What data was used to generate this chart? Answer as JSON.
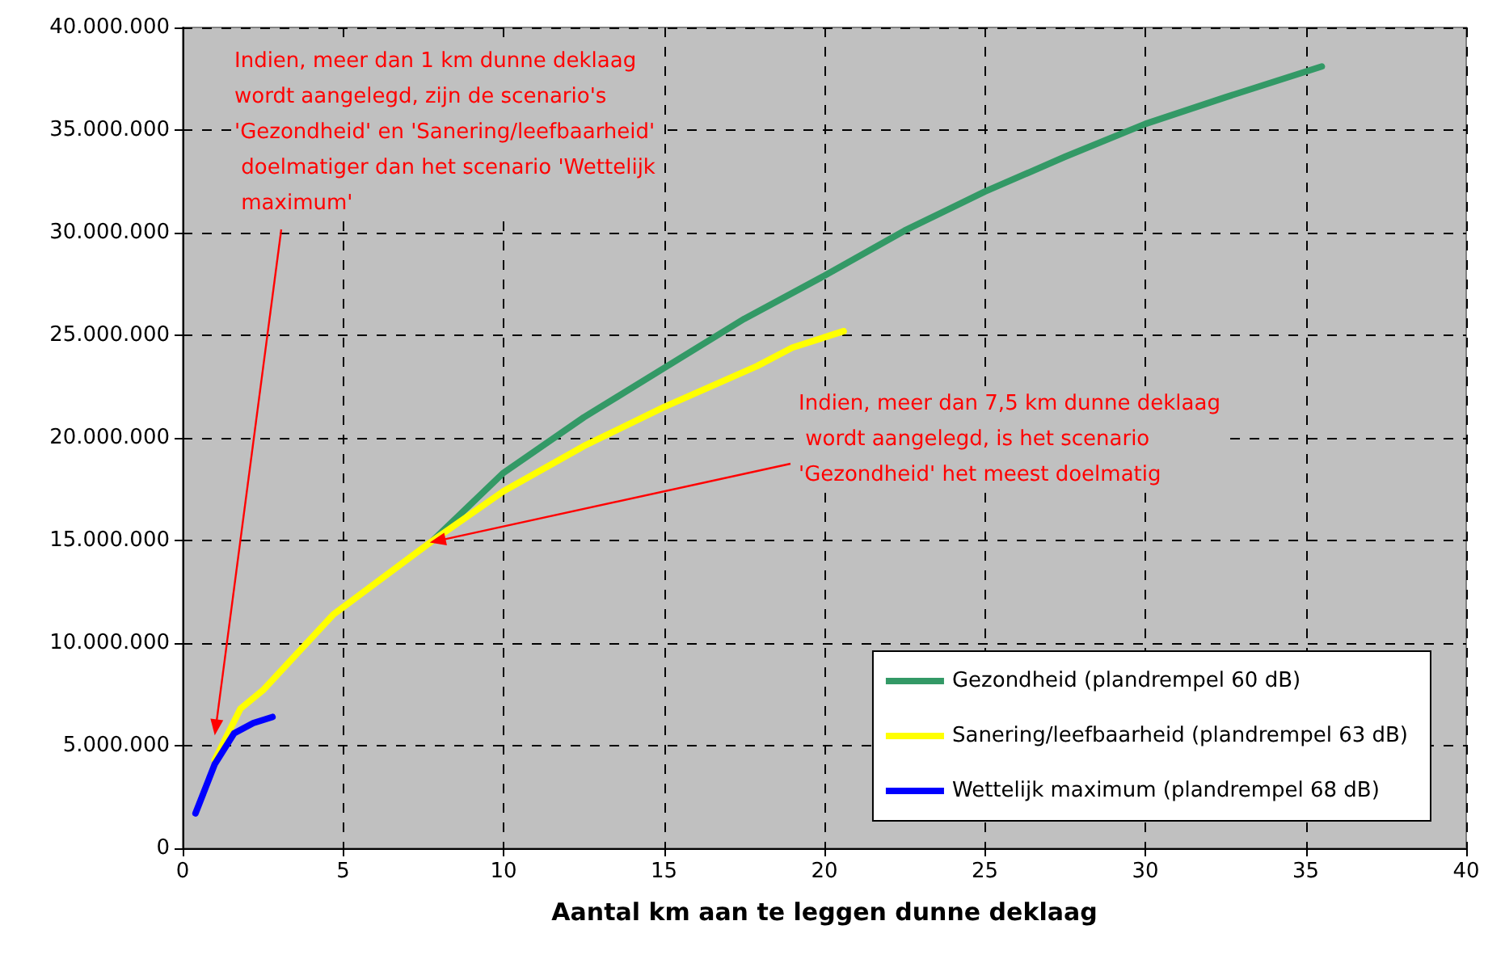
{
  "chart_data": {
    "type": "line",
    "xlabel": "Aantal km aan te leggen dunne deklaag",
    "xlim": [
      0,
      40
    ],
    "xticks": [
      0,
      5,
      10,
      15,
      20,
      25,
      30,
      35,
      40
    ],
    "ylim": [
      0,
      40000000
    ],
    "yticks": [
      {
        "value": 0,
        "label": "0"
      },
      {
        "value": 5000000,
        "label": "5.000.000"
      },
      {
        "value": 10000000,
        "label": "10.000.000"
      },
      {
        "value": 15000000,
        "label": "15.000.000"
      },
      {
        "value": 20000000,
        "label": "20.000.000"
      },
      {
        "value": 25000000,
        "label": "25.000.000"
      },
      {
        "value": 30000000,
        "label": "30.000.000"
      },
      {
        "value": 35000000,
        "label": "35.000.000"
      },
      {
        "value": 40000000,
        "label": "40.000.000"
      }
    ],
    "grid": true,
    "legend": "bottom right",
    "marker": "none",
    "line_style": "solid",
    "series": [
      {
        "name": "Gezondheid (plandrempel 60 dB)",
        "color": "#339966",
        "x": [
          7.8,
          10,
          12.5,
          15,
          17.5,
          20,
          22.5,
          25,
          27.5,
          30,
          32.5,
          35.5
        ],
        "values": [
          15000000,
          18300000,
          21000000,
          23400000,
          25800000,
          27900000,
          30100000,
          32000000,
          33700000,
          35300000,
          36600000,
          38100000
        ]
      },
      {
        "name": "Sanering/leefbaarheid (plandrempel 63 dB)",
        "color": "#ffff00",
        "x": [
          1.0,
          1.8,
          2.5,
          4.7,
          7.8,
          10,
          12.5,
          15,
          17.9,
          19,
          20.6
        ],
        "values": [
          4300000,
          6800000,
          7700000,
          11400000,
          15000000,
          17400000,
          19600000,
          21500000,
          23500000,
          24400000,
          25200000
        ]
      },
      {
        "name": "Wettelijk maximum (plandrempel 68 dB)",
        "color": "#0000ff",
        "x": [
          0.4,
          1.0,
          1.6,
          2.2,
          2.8
        ],
        "values": [
          1700000,
          4100000,
          5600000,
          6100000,
          6400000
        ]
      }
    ],
    "annotations": [
      {
        "text": "Indien, meer dan 1 km dunne deklaag wordt aangelegd, zijn de scenario's 'Gezondheid' en 'Sanering/leefbaarheid' doelmatiger dan het scenario 'Wettelijk maximum'",
        "x": 1,
        "y": 5500000
      },
      {
        "text": "Indien, meer dan 7,5 km dunne deklaag wordt aangelegd, is het scenario 'Gezondheid' het meest doelmatig",
        "x": 7.7,
        "y": 14900000
      }
    ]
  }
}
